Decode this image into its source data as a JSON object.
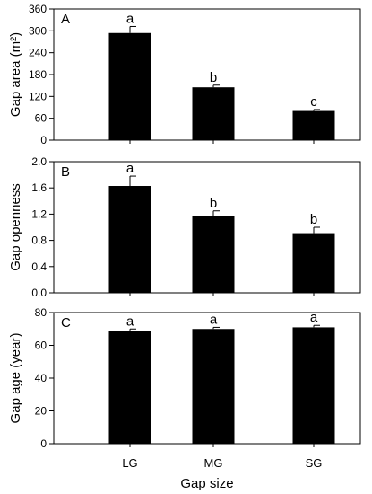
{
  "chart_data": {
    "type": "bar",
    "layout": "three vertically stacked panels sharing x-axis",
    "xlabel": "Gap size",
    "categories": [
      "LG",
      "MG",
      "SG"
    ],
    "bar_color": "#000000",
    "panels": [
      {
        "letter": "A",
        "ylabel": "Gap area (m²)",
        "ylim": [
          0,
          360
        ],
        "yticks": [
          "0",
          "60",
          "120",
          "180",
          "240",
          "300",
          "360"
        ],
        "values": [
          294,
          145,
          80
        ],
        "errors": [
          18,
          6,
          4
        ],
        "significance": [
          "a",
          "b",
          "c"
        ]
      },
      {
        "letter": "B",
        "ylabel": "Gap openness",
        "ylim": [
          0,
          2.0
        ],
        "yticks": [
          "0.0",
          "0.4",
          "0.8",
          "1.2",
          "1.6",
          "2.0"
        ],
        "values": [
          1.63,
          1.17,
          0.91
        ],
        "errors": [
          0.15,
          0.08,
          0.09
        ],
        "significance": [
          "a",
          "b",
          "b"
        ]
      },
      {
        "letter": "C",
        "ylabel": "Gap age (year)",
        "ylim": [
          0,
          80
        ],
        "yticks": [
          "0",
          "20",
          "40",
          "60",
          "80"
        ],
        "values": [
          69,
          70,
          71
        ],
        "errors": [
          1.0,
          1.0,
          1.2
        ],
        "significance": [
          "a",
          "a",
          "a"
        ]
      }
    ]
  }
}
